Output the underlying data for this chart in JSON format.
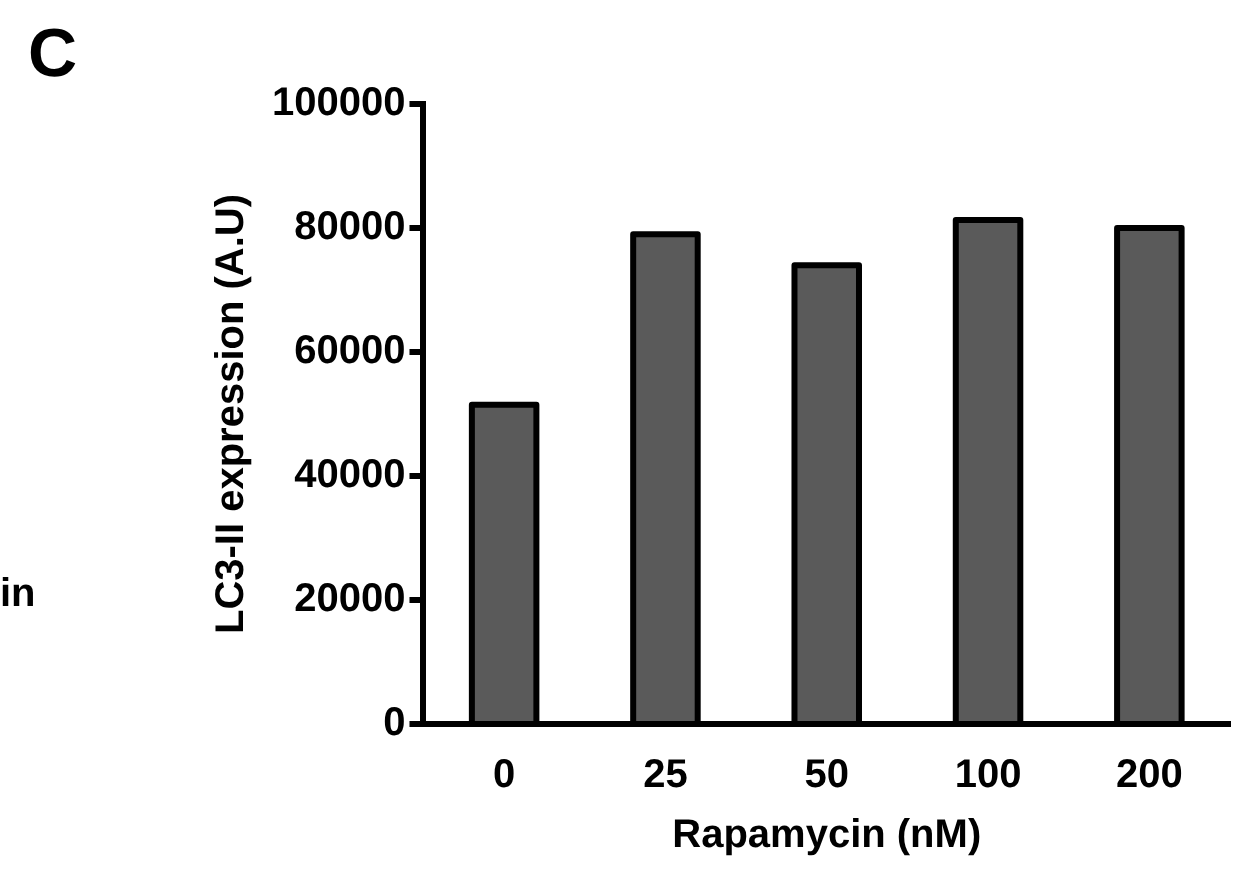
{
  "chart_data": {
    "type": "bar",
    "title": "C",
    "xlabel": "Rapamycin (nM)",
    "ylabel": "LC3-II expression (A.U)",
    "categories": [
      "0",
      "25",
      "50",
      "100",
      "200"
    ],
    "values": [
      51500,
      79000,
      74000,
      81300,
      80000
    ],
    "color": "#5a5a5a",
    "ylim": [
      0,
      100000
    ],
    "yticks": [
      0,
      20000,
      40000,
      60000,
      80000,
      100000
    ],
    "annotations": [
      "in"
    ]
  }
}
